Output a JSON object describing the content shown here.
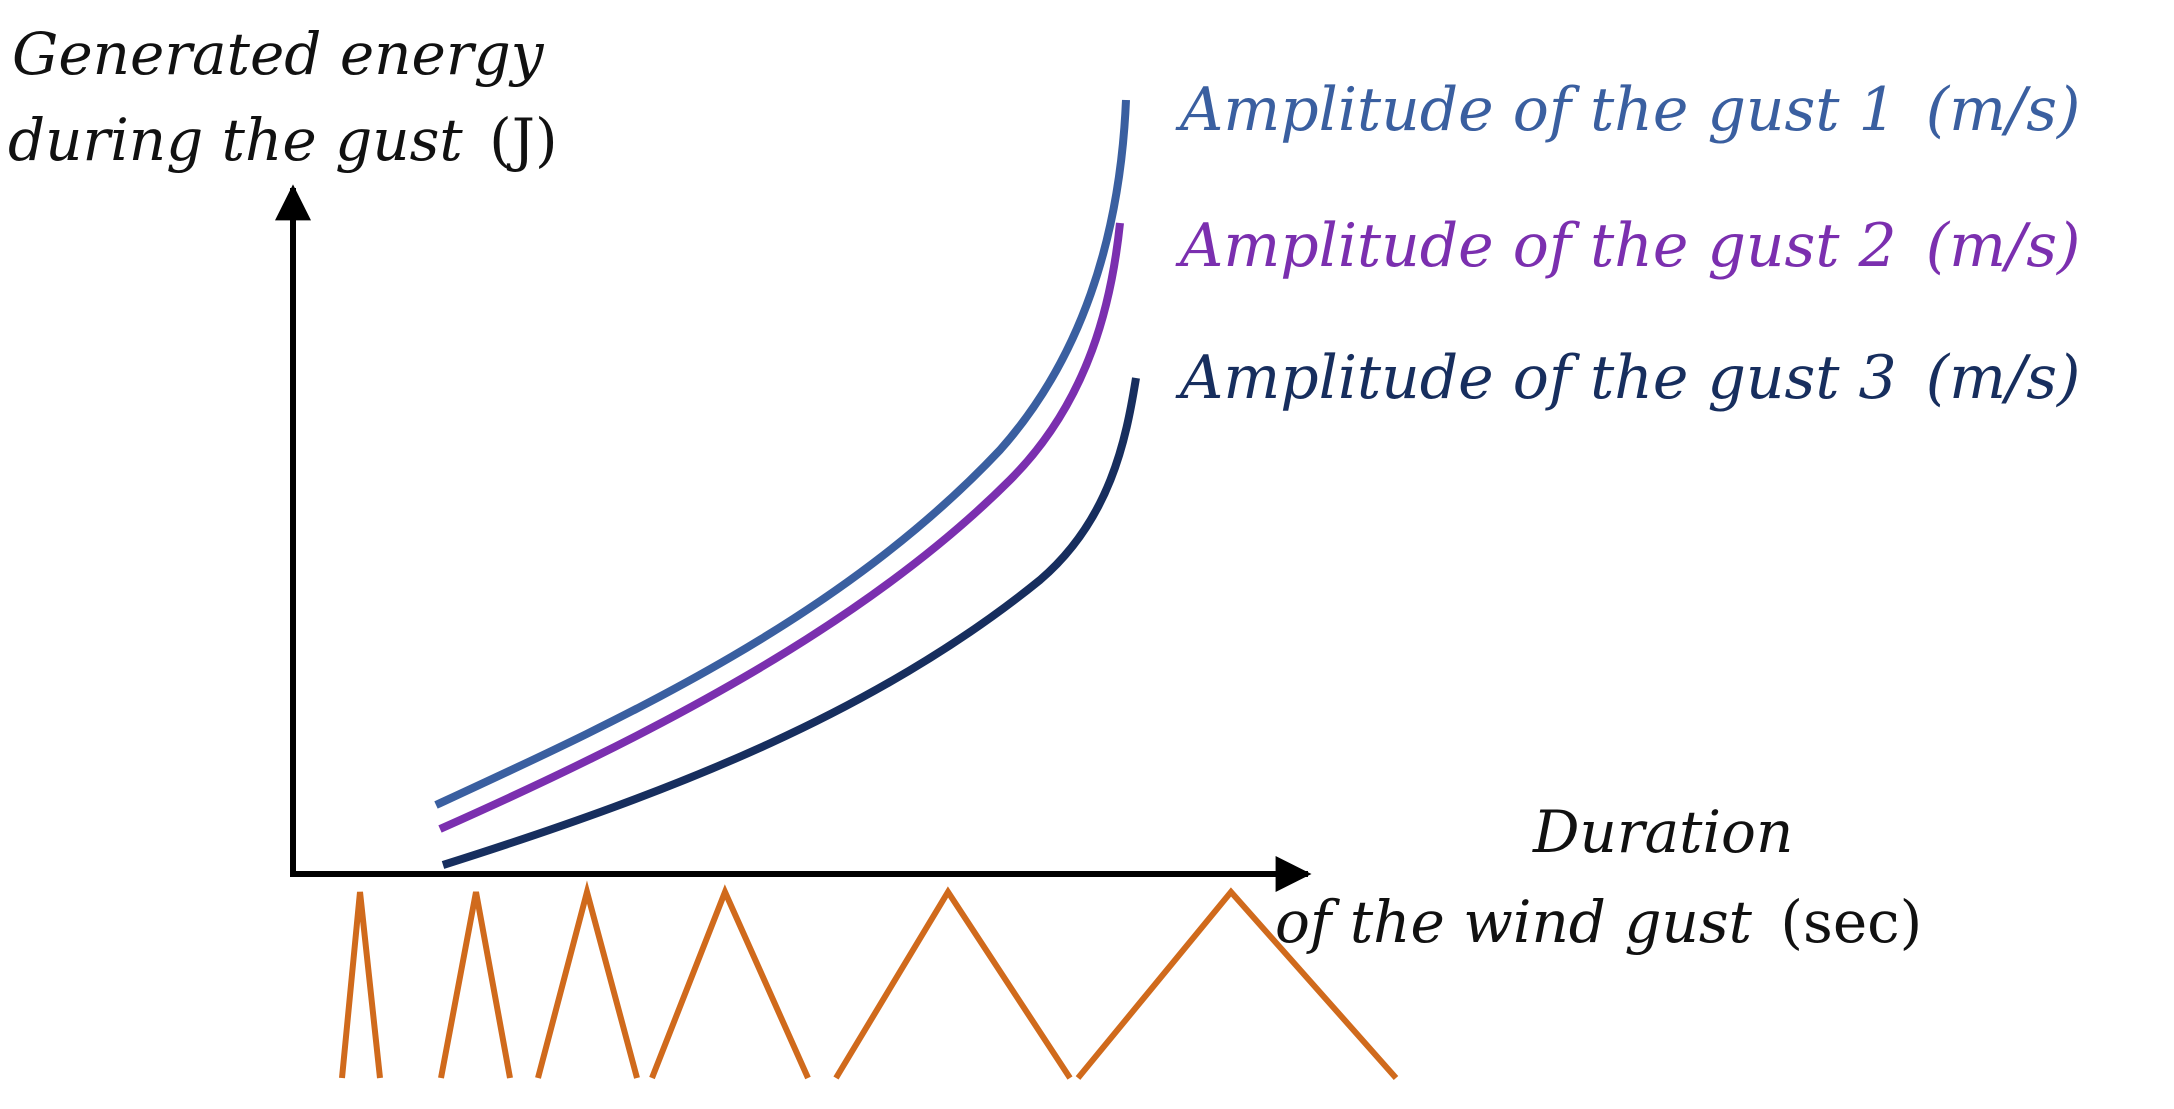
{
  "y_axis_label": {
    "line1": "Generated energy",
    "line2": "during the gust",
    "unit": "(J)"
  },
  "x_axis_label": {
    "line1": "Duration",
    "line2": "of the wind gust",
    "unit": "(sec)"
  },
  "curves": [
    {
      "label": "Amplitude of the gust 1",
      "unit": "(m/s)",
      "color": "#3A5FA0"
    },
    {
      "label": "Amplitude of the gust 2",
      "unit": "(m/s)",
      "color": "#7B2FAF"
    },
    {
      "label": "Amplitude of the gust 3",
      "unit": "(m/s)",
      "color": "#172E5E"
    }
  ],
  "axis_color": "#000000",
  "gust_pulse_color": "#D06A1C",
  "gust_pulse_count": 6
}
